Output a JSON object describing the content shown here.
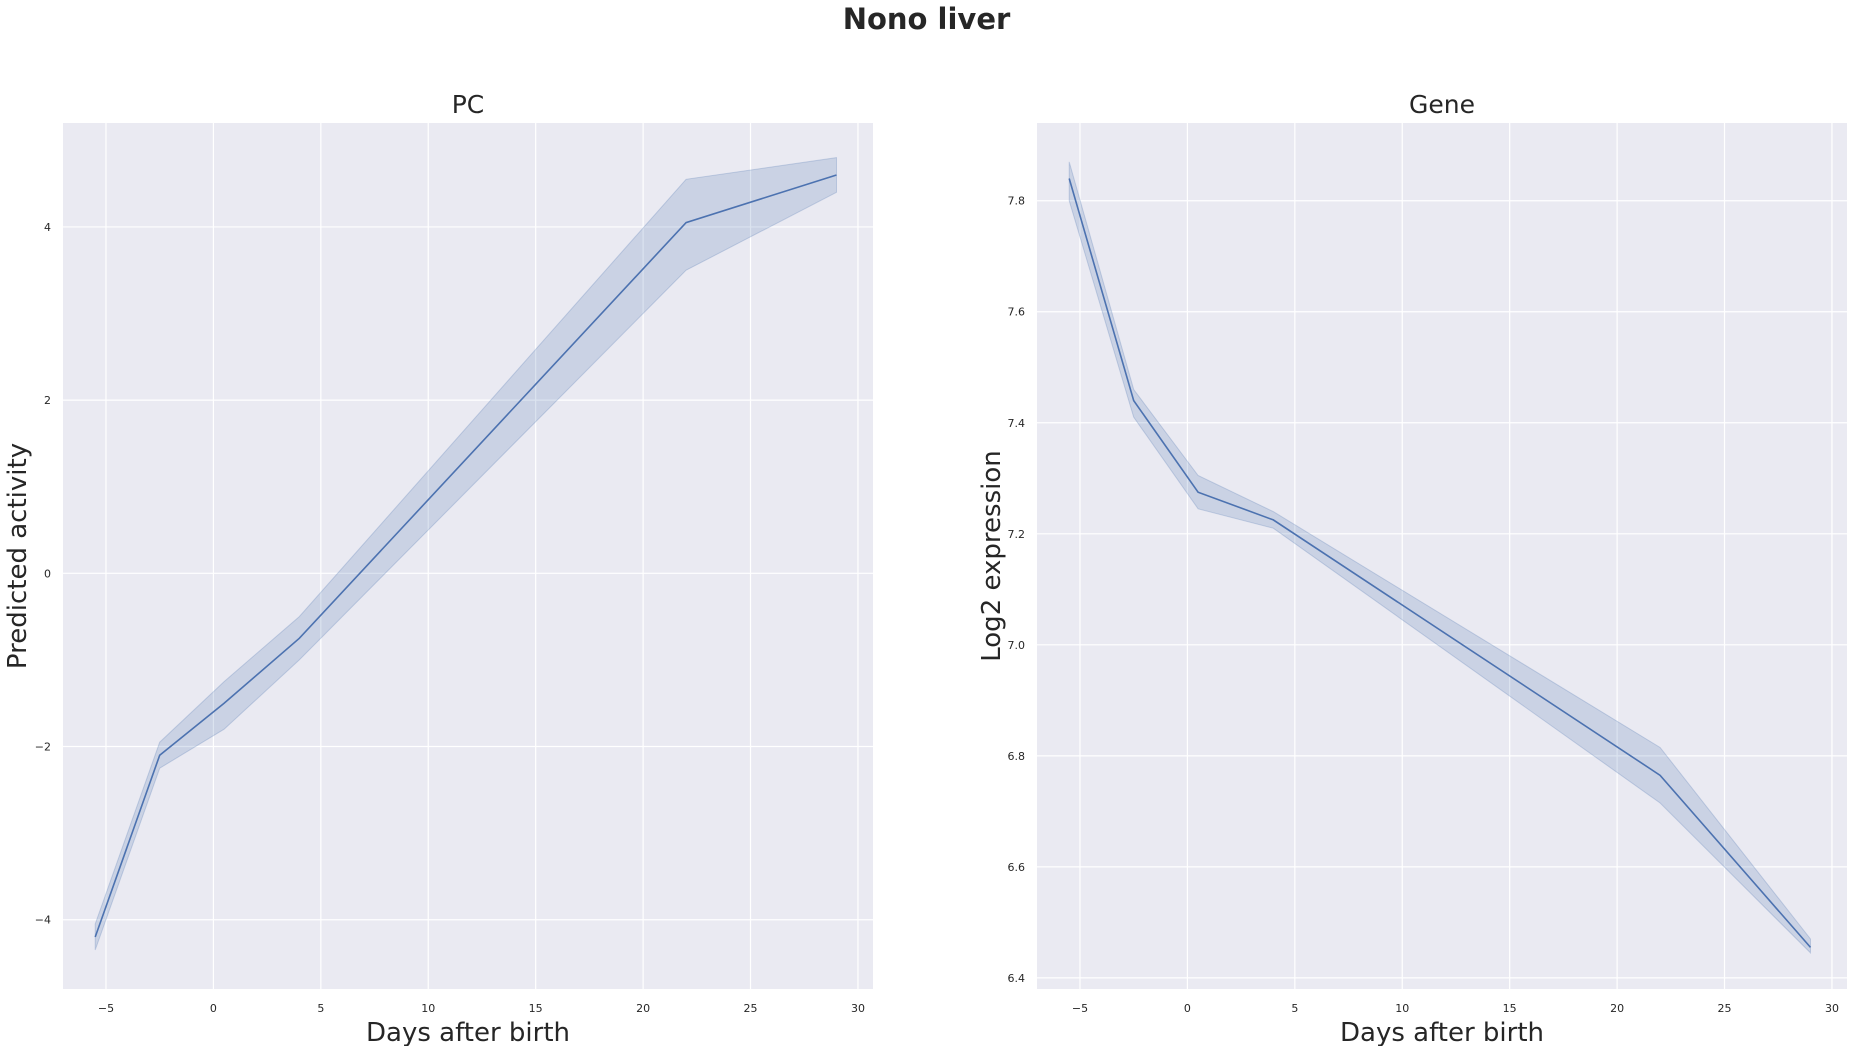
{
  "figure": {
    "title": "Nono liver"
  },
  "chart_data": [
    {
      "type": "line",
      "title": "PC",
      "xlabel": "Days after birth",
      "ylabel": "Predicted activity",
      "xlim": [
        -7,
        30.7
      ],
      "ylim": [
        -4.8,
        5.2
      ],
      "xticks": [
        -5,
        0,
        5,
        10,
        15,
        20,
        25,
        30
      ],
      "xtick_labels": [
        "−5",
        "0",
        "5",
        "10",
        "15",
        "20",
        "25",
        "30"
      ],
      "yticks": [
        -4,
        -2,
        0,
        2,
        4
      ],
      "ytick_labels": [
        "−4",
        "−2",
        "0",
        "2",
        "4"
      ],
      "grid": true,
      "line_color": "#4c72b0",
      "band_color": "#4c72b0",
      "background": "#eaeaf2",
      "series": [
        {
          "x": [
            -5.5,
            -2.5,
            0.5,
            4,
            22,
            29
          ],
          "y": [
            -4.2,
            -2.1,
            -1.5,
            -0.75,
            4.05,
            4.6
          ],
          "ci_low": [
            -4.35,
            -2.25,
            -1.8,
            -1.0,
            3.5,
            4.4
          ],
          "ci_high": [
            -4.05,
            -1.95,
            -1.25,
            -0.5,
            4.55,
            4.8
          ]
        }
      ]
    },
    {
      "type": "line",
      "title": "Gene",
      "xlabel": "Days after birth",
      "ylabel": "Log2 expression",
      "xlim": [
        -7,
        30.7
      ],
      "ylim": [
        6.38,
        7.94
      ],
      "xticks": [
        -5,
        0,
        5,
        10,
        15,
        20,
        25,
        30
      ],
      "xtick_labels": [
        "−5",
        "0",
        "5",
        "10",
        "15",
        "20",
        "25",
        "30"
      ],
      "yticks": [
        6.4,
        6.6,
        6.8,
        7.0,
        7.2,
        7.4,
        7.6,
        7.8
      ],
      "ytick_labels": [
        "6.4",
        "6.6",
        "6.8",
        "7.0",
        "7.2",
        "7.4",
        "7.6",
        "7.8"
      ],
      "grid": true,
      "line_color": "#4c72b0",
      "band_color": "#4c72b0",
      "background": "#eaeaf2",
      "series": [
        {
          "x": [
            -5.5,
            -2.5,
            0.5,
            4,
            22,
            29
          ],
          "y": [
            7.84,
            7.44,
            7.275,
            7.225,
            6.765,
            6.455
          ],
          "ci_low": [
            7.8,
            7.41,
            7.245,
            7.21,
            6.715,
            6.445
          ],
          "ci_high": [
            7.87,
            7.46,
            7.305,
            7.24,
            6.815,
            6.47
          ]
        }
      ]
    }
  ]
}
